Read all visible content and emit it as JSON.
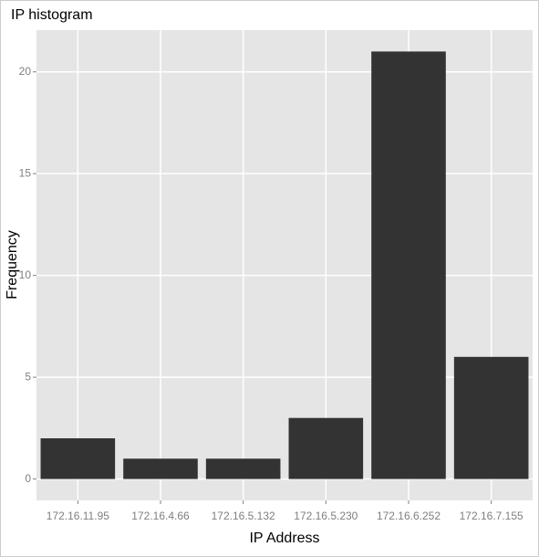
{
  "chart_data": {
    "type": "bar",
    "title": "IP histogram",
    "x_label": "IP Address",
    "y_label": "Frequency",
    "categories": [
      "172.16.11.95",
      "172.16.4.66",
      "172.16.5.132",
      "172.16.5.230",
      "172.16.6.252",
      "172.16.7.155"
    ],
    "values": [
      2,
      1,
      1,
      3,
      21,
      6
    ],
    "color": "#333333",
    "ylim": [
      -1.05,
      22.05
    ],
    "yticks": [
      0,
      5,
      10,
      15,
      20
    ],
    "grid": true
  }
}
